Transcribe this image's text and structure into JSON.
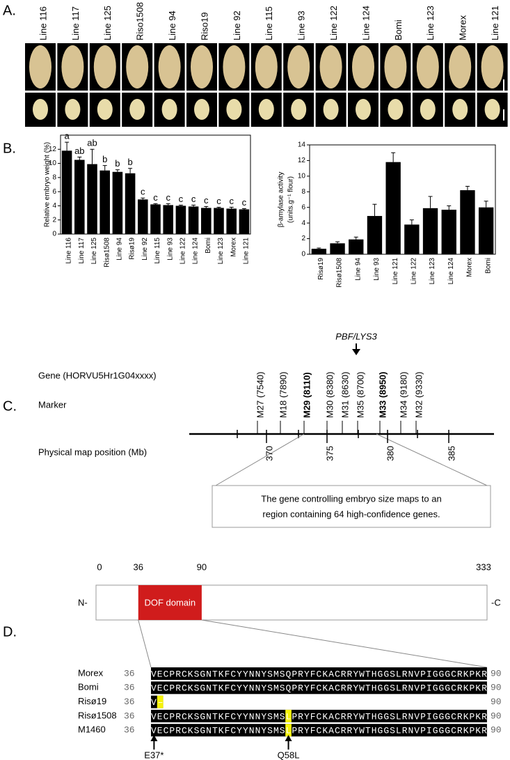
{
  "panel_a": {
    "label": "A.",
    "samples": [
      "Line 116",
      "Line 117",
      "Line 125",
      "Riso1508",
      "Line 94",
      "Riso19",
      "Line 92",
      "Line 115",
      "Line 93",
      "Line 122",
      "Line 124",
      "Bomi",
      "Line 123",
      "Morex",
      "Line 121"
    ]
  },
  "panel_b": {
    "label": "B."
  },
  "chart_data": [
    {
      "type": "bar",
      "ylabel": "Relative embryo weight (%)",
      "categories": [
        "Line 116",
        "Line 117",
        "Line 125",
        "Risø1508",
        "Line 94",
        "Risø19",
        "Line 92",
        "Line 115",
        "Line 93",
        "Line 122",
        "Line 124",
        "Bomi",
        "Line 123",
        "Morex",
        "Line 121"
      ],
      "values": [
        11.8,
        10.5,
        9.9,
        9.0,
        8.8,
        8.6,
        4.9,
        4.2,
        4.1,
        4.0,
        3.9,
        3.7,
        3.7,
        3.6,
        3.5
      ],
      "errors": [
        1.2,
        0.4,
        2.1,
        0.7,
        0.3,
        0.7,
        0.2,
        0.1,
        0.2,
        0.1,
        0.2,
        0.2,
        0.1,
        0.2,
        0.1
      ],
      "annotations": [
        "a",
        "ab",
        "ab",
        "b",
        "b",
        "b",
        "c",
        "c",
        "c",
        "c",
        "c",
        "c",
        "c",
        "c",
        "c"
      ],
      "color": "#000000",
      "ylim": [
        0,
        14
      ],
      "yticks": [
        0,
        2,
        4,
        6,
        8,
        10,
        12
      ]
    },
    {
      "type": "bar",
      "ylabel": [
        "β-amylase activity",
        "(units.g⁻¹ flour)"
      ],
      "categories": [
        "Risø19",
        "Risø1508",
        "Line 94",
        "Line 93",
        "Line 121",
        "Line 122",
        "Line 123",
        "Line 124",
        "Morex",
        "Bomi"
      ],
      "values": [
        0.7,
        1.4,
        1.9,
        4.9,
        11.8,
        3.8,
        5.9,
        5.7,
        8.2,
        6.0
      ],
      "errors": [
        0.1,
        0.2,
        0.3,
        1.5,
        1.2,
        0.6,
        1.5,
        0.5,
        0.5,
        0.8
      ],
      "color": "#000000",
      "ylim": [
        0,
        14
      ],
      "yticks": [
        0,
        2,
        4,
        6,
        8,
        10,
        12,
        14
      ]
    }
  ],
  "panel_c": {
    "label": "C.",
    "gene_label": "Gene (HORVU5Hr1G04xxxx)",
    "marker_label": "Marker",
    "position_label": "Physical map position (Mb)",
    "locus": "PBF/LYS3",
    "markers": [
      {
        "text": "M27 (7540)",
        "bold": false
      },
      {
        "text": "M18 (7890)",
        "bold": false
      },
      {
        "text": "M29 (8110)",
        "bold": true
      },
      {
        "text": "M30 (8380)",
        "bold": false
      },
      {
        "text": "M31 (8630)",
        "bold": false
      },
      {
        "text": "M35 (8700)",
        "bold": false
      },
      {
        "text": "M33 (8950)",
        "bold": true
      },
      {
        "text": "M34 (9180)",
        "bold": false
      },
      {
        "text": "M32 (9330)",
        "bold": false
      }
    ],
    "ticks": [
      370,
      375,
      380,
      385
    ],
    "note": [
      "The gene controlling embryo size maps to an",
      "region containing 64 high-confidence genes."
    ]
  },
  "panel_d": {
    "label": "D.",
    "domain": "DOF domain",
    "positions": [
      0,
      36,
      90,
      333
    ],
    "n_term": "N-",
    "c_term": "-C",
    "alignment": [
      {
        "name": "Morex",
        "start": 36,
        "sequence": "VECPRCKSGNTKFCYYNNYSMSQPRYFCKACRRYWTHGGSLRNVPIGGGCRKPKR",
        "end": 90
      },
      {
        "name": "Bomi",
        "start": 36,
        "sequence": "VECPRCKSGNTKFCYYNNYSMSQPRYFCKACRRYWTHGGSLRNVPIGGGCRKPKR",
        "end": 90
      },
      {
        "name": "Risø19",
        "start": 36,
        "sequence": "V–",
        "end": 90
      },
      {
        "name": "Risø1508",
        "start": 36,
        "sequence": "VECPRCKSGNTKFCYYNNYSMSLPRYFCKACRRYWTHGGSLRNVPIGGGCRKPKR",
        "end": 90
      },
      {
        "name": "M1460",
        "start": 36,
        "sequence": "VECPRCKSGNTKFCYYNNYSMSLPRYFCKACRRYWTHGGSLRNVPIGGGCRKPKR",
        "end": 90
      }
    ],
    "mutations": [
      "E37*",
      "Q58L"
    ]
  }
}
